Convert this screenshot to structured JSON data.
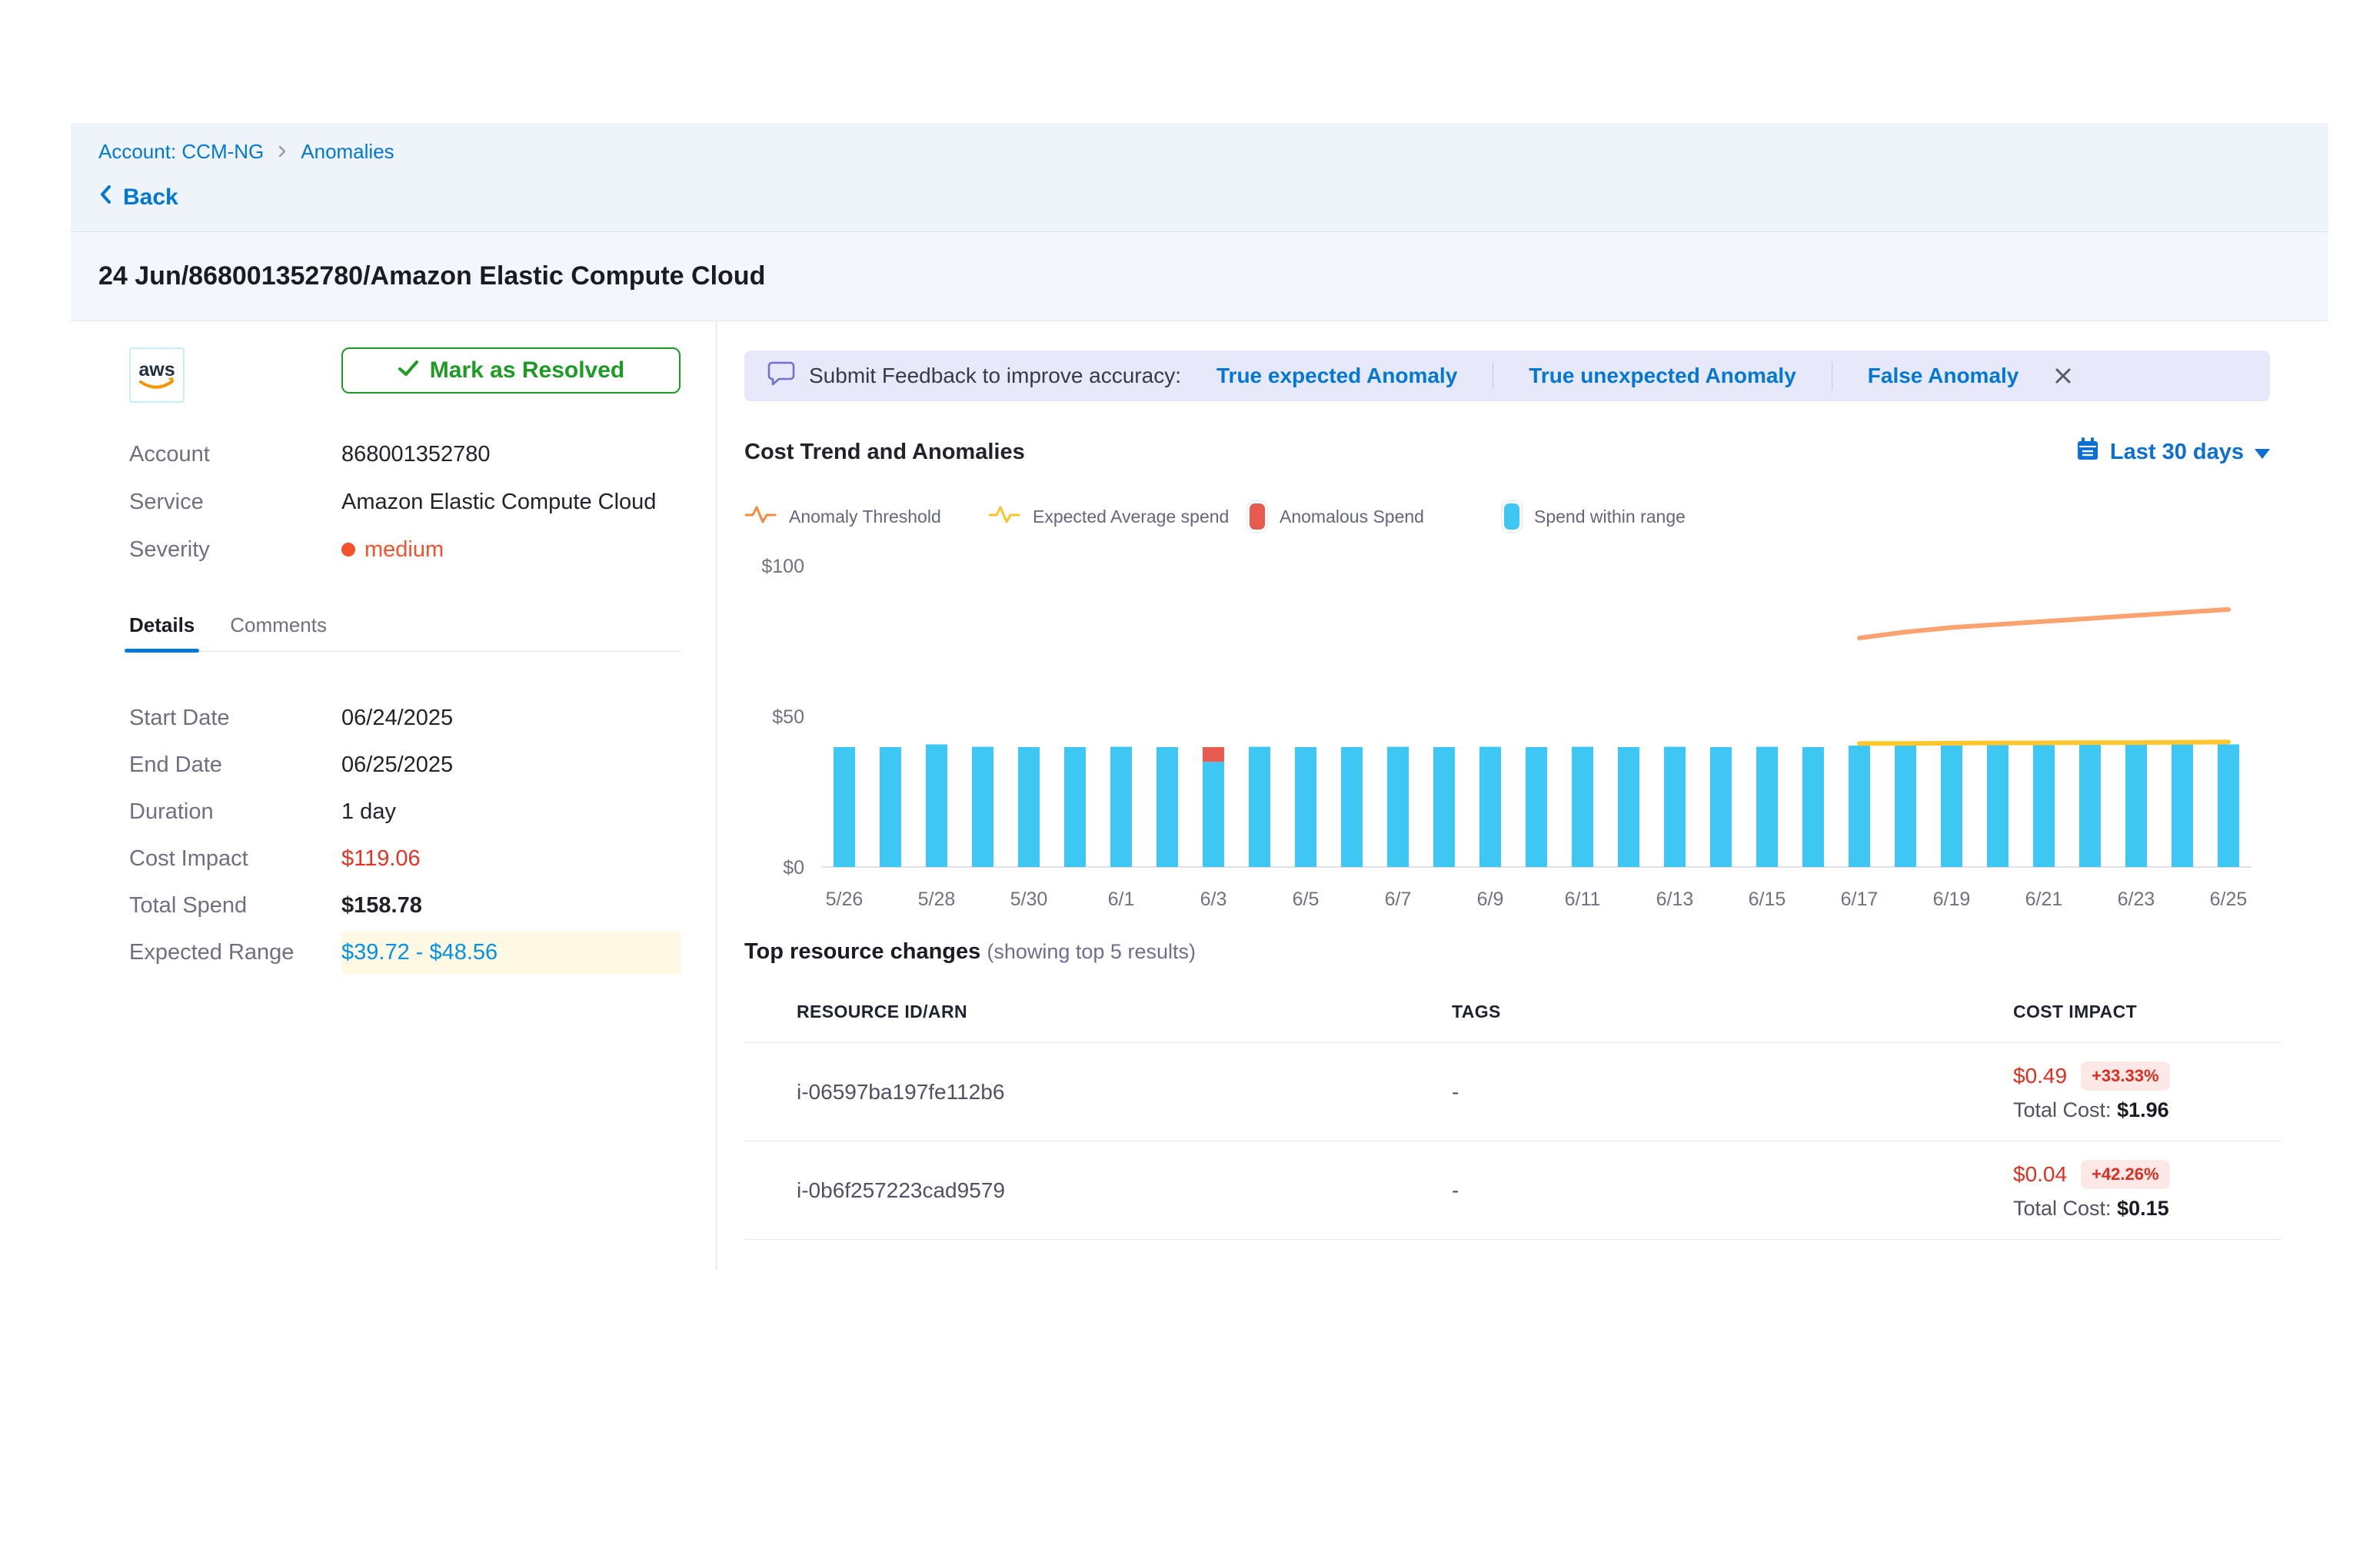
{
  "breadcrumb": {
    "account": "Account: CCM-NG",
    "section": "Anomalies"
  },
  "back_label": "Back",
  "page_title": "24 Jun/868001352780/Amazon Elastic Compute Cloud",
  "panel": {
    "resolve_button": "Mark as Resolved",
    "fields": {
      "account_label": "Account",
      "account_value": "868001352780",
      "service_label": "Service",
      "service_value": "Amazon Elastic Compute Cloud",
      "severity_label": "Severity",
      "severity_value": "medium"
    },
    "tabs": {
      "details": "Details",
      "comments": "Comments"
    },
    "details": [
      {
        "label": "Start Date",
        "value": "06/24/2025"
      },
      {
        "label": "End Date",
        "value": "06/25/2025"
      },
      {
        "label": "Duration",
        "value": "1 day"
      },
      {
        "label": "Cost Impact",
        "value": "$119.06"
      },
      {
        "label": "Total Spend",
        "value": "$158.78"
      },
      {
        "label": "Expected Range",
        "value": "$39.72 - $48.56"
      }
    ]
  },
  "feedback": {
    "prompt": "Submit Feedback to improve accuracy:",
    "options": [
      "True expected Anomaly",
      "True unexpected Anomaly",
      "False Anomaly"
    ]
  },
  "chart": {
    "title": "Cost Trend and Anomalies",
    "range_selector": "Last 30 days"
  },
  "chart_data": {
    "type": "bar",
    "title": "Cost Trend and Anomalies",
    "xlabel": "",
    "ylabel": "",
    "ylim": [
      0,
      100
    ],
    "yticks": [
      {
        "v": 0,
        "label": "$0"
      },
      {
        "v": 50,
        "label": "$50"
      },
      {
        "v": 100,
        "label": "$100"
      }
    ],
    "grid": false,
    "legend_position": "top",
    "categories": [
      "5/26",
      "5/27",
      "5/28",
      "5/29",
      "5/30",
      "5/31",
      "6/1",
      "6/2",
      "6/3",
      "6/4",
      "6/5",
      "6/6",
      "6/7",
      "6/8",
      "6/9",
      "6/10",
      "6/11",
      "6/12",
      "6/13",
      "6/14",
      "6/15",
      "6/16",
      "6/17",
      "6/18",
      "6/19",
      "6/20",
      "6/21",
      "6/22",
      "6/23",
      "6/24",
      "6/25"
    ],
    "series": [
      {
        "name": "Anomaly Threshold",
        "kind": "line",
        "color": "#FCA26E",
        "values": [
          null,
          null,
          null,
          null,
          null,
          null,
          null,
          null,
          null,
          null,
          null,
          null,
          null,
          null,
          null,
          null,
          null,
          null,
          null,
          null,
          null,
          null,
          76,
          78,
          79.5,
          80.5,
          81.5,
          82.5,
          83.5,
          84.5,
          85.5
        ]
      },
      {
        "name": "Expected Average spend",
        "kind": "line",
        "color": "#FFC72C",
        "values": [
          null,
          null,
          null,
          null,
          null,
          null,
          null,
          null,
          null,
          null,
          null,
          null,
          null,
          null,
          null,
          null,
          null,
          null,
          null,
          null,
          null,
          null,
          41,
          41,
          41.1,
          41.2,
          41.2,
          41.3,
          41.3,
          41.4,
          41.5
        ]
      },
      {
        "name": "Anomalous Spend",
        "kind": "bar-top",
        "color": "#E85B50",
        "values": [
          0,
          0,
          0,
          0,
          0,
          0,
          0,
          0,
          4.9,
          0,
          0,
          0,
          0,
          0,
          0,
          0,
          0,
          0,
          0,
          0,
          0,
          0,
          0,
          0,
          0,
          0,
          0,
          0,
          0,
          0,
          0
        ]
      },
      {
        "name": "Spend within range",
        "kind": "bar",
        "color": "#3EC7F2",
        "values": [
          39.8,
          39.8,
          40.7,
          39.9,
          39.8,
          39.8,
          39.9,
          39.8,
          34.9,
          39.9,
          39.8,
          39.8,
          39.9,
          39.8,
          39.9,
          39.8,
          39.9,
          39.8,
          39.9,
          39.8,
          39.9,
          39.8,
          40.3,
          40.4,
          40.4,
          40.5,
          40.5,
          40.6,
          40.6,
          40.7,
          40.7
        ]
      }
    ]
  },
  "resources": {
    "heading": "Top resource changes",
    "subheading": "(showing top 5 results)",
    "columns": [
      "RESOURCE ID/ARN",
      "TAGS",
      "COST IMPACT"
    ],
    "rows": [
      {
        "id": "i-06597ba197fe112b6",
        "tags": "-",
        "impact": "$0.49",
        "impact_pct": "+33.33%",
        "total_label": "Total Cost:",
        "total": "$1.96"
      },
      {
        "id": "i-0b6f257223cad9579",
        "tags": "-",
        "impact": "$0.04",
        "impact_pct": "+42.26%",
        "total_label": "Total Cost:",
        "total": "$0.15"
      }
    ]
  },
  "colors": {
    "accent_blue": "#0278d5",
    "green": "#1e9b25",
    "red": "#e43326",
    "bar_cyan": "#3EC7F2",
    "bar_red": "#E85B50",
    "line_orange": "#FCA26E",
    "line_yellow": "#FFC72C",
    "severity_orange": "#f4512c",
    "range_blue": "#0092e4"
  }
}
